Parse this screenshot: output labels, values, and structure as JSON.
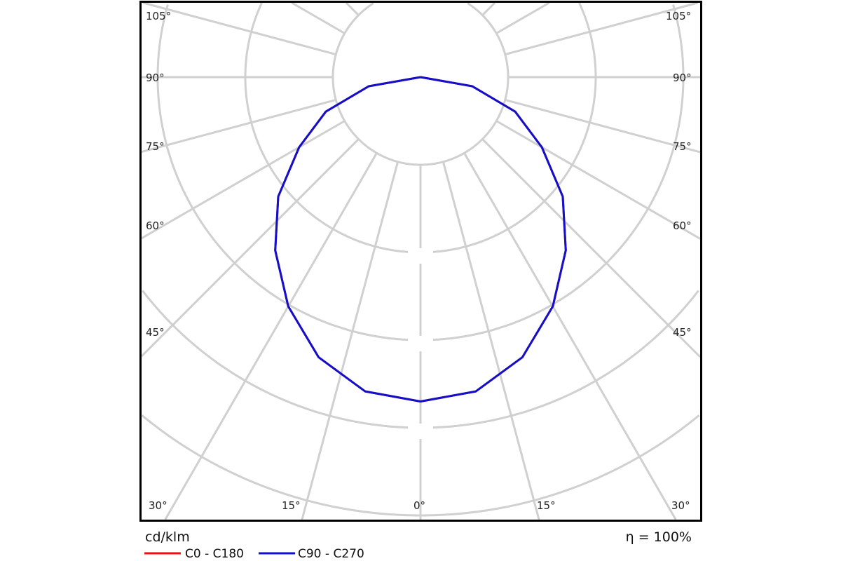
{
  "chart_data": {
    "type": "polar",
    "unit_label": "cd/klm",
    "efficiency_label": "η = 100%",
    "angle_labels_left": [
      "105°",
      "90°",
      "75°",
      "60°",
      "45°",
      "30°",
      "15°"
    ],
    "angle_label_center": "0°",
    "angle_labels_right": [
      "105°",
      "90°",
      "75°",
      "60°",
      "45°",
      "30°",
      "15°"
    ],
    "gamma_angles": [
      0,
      10,
      20,
      30,
      40,
      50,
      60,
      70,
      80,
      90
    ],
    "series": [
      {
        "name": "C0 - C180",
        "color": "#ee1111",
        "values": [
          3.7,
          3.64,
          3.4,
          3.02,
          2.58,
          2.12,
          1.6,
          1.15,
          0.6,
          0.0
        ]
      },
      {
        "name": "C90 - C270",
        "color": "#1111cc",
        "values": [
          3.7,
          3.64,
          3.4,
          3.02,
          2.58,
          2.12,
          1.6,
          1.15,
          0.6,
          0.0
        ]
      }
    ],
    "grid": true,
    "grid_color": "#d0d0d0",
    "ray_step_deg": 15,
    "legend_position": "bottom-left"
  }
}
